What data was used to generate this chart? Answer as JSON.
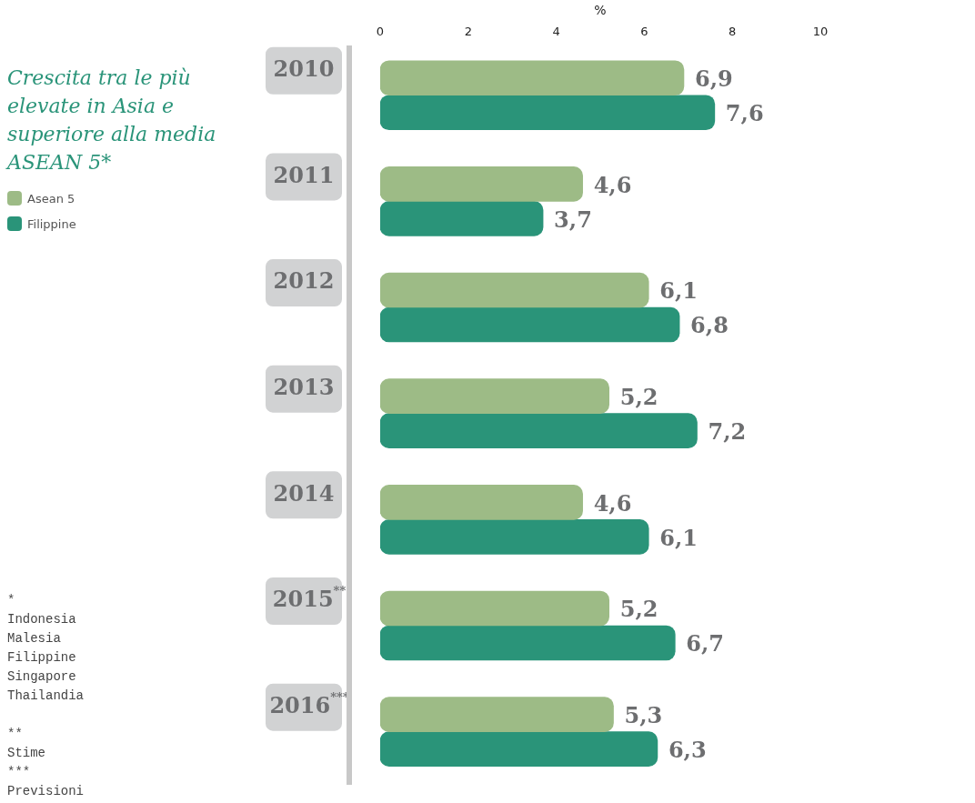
{
  "chart_data": {
    "type": "bar",
    "orientation": "horizontal",
    "title": "Crescita tra le più elevate in Asia e superiore alla media ASEAN 5*",
    "xlabel": "%",
    "categories": [
      "2010",
      "2011",
      "2012",
      "2013",
      "2014",
      "2015$^{**}$",
      "2016$^{***}$"
    ],
    "series": [
      {
        "name": "Asean 5",
        "color": "#9dbb86",
        "values": [
          6.9,
          4.6,
          6.1,
          5.2,
          4.6,
          5.2,
          5.3
        ],
        "value_labels": [
          "6,9",
          "4,6",
          "6,1",
          "5,2",
          "4,6",
          "5,2",
          "5,3"
        ]
      },
      {
        "name": "Filippine",
        "color": "#2a9479",
        "values": [
          7.6,
          3.7,
          6.8,
          7.2,
          6.1,
          6.7,
          6.3
        ],
        "value_labels": [
          "7,6",
          "3,7",
          "6,8",
          "7,2",
          "6,1",
          "6,7",
          "6,3"
        ]
      }
    ],
    "xlim": [
      0,
      10
    ],
    "xticks": [
      0,
      2,
      4,
      6,
      8,
      10
    ],
    "grid": false,
    "legend": "left",
    "annotations": [
      "*\nIndonesia\nMalesia\nFilippine\nSingapore\nThailandia",
      "**\nStime\n***\nPrevisioni"
    ]
  }
}
